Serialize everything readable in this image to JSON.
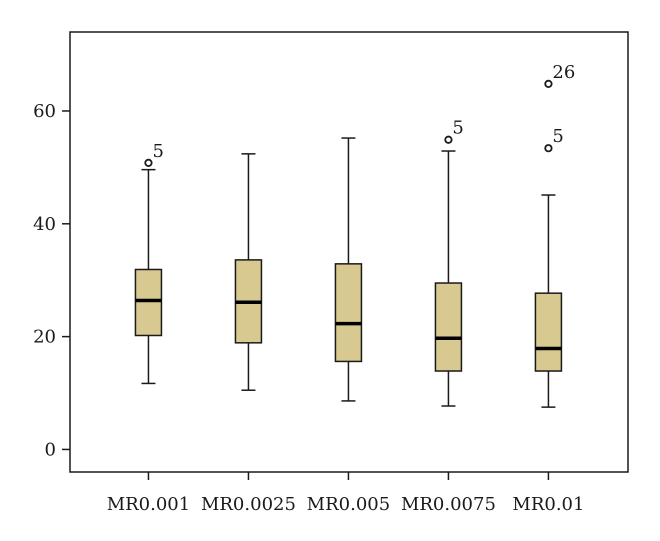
{
  "chart_data": {
    "type": "boxplot",
    "categories": [
      "MR0.001",
      "MR0.0025",
      "MR0.005",
      "MR0.0075",
      "MR0.01"
    ],
    "ylim": [
      -4,
      74
    ],
    "y_ticks": [
      0,
      20,
      40,
      60
    ],
    "grid": false,
    "box_color": "#d7c98f",
    "line_color": "#1a1a1a",
    "boxes": [
      {
        "label": "MR0.001",
        "min": 11.7,
        "q1": 20.2,
        "median": 26.4,
        "q3": 31.9,
        "max": 49.6,
        "outliers": [
          {
            "value": 50.8,
            "label": "5"
          }
        ]
      },
      {
        "label": "MR0.0025",
        "min": 10.5,
        "q1": 18.9,
        "median": 26.1,
        "q3": 33.6,
        "max": 52.4,
        "outliers": []
      },
      {
        "label": "MR0.005",
        "min": 8.6,
        "q1": 15.6,
        "median": 22.3,
        "q3": 32.9,
        "max": 55.2,
        "outliers": []
      },
      {
        "label": "MR0.0075",
        "min": 7.7,
        "q1": 13.9,
        "median": 19.7,
        "q3": 29.5,
        "max": 52.9,
        "outliers": [
          {
            "value": 54.9,
            "label": "5"
          }
        ]
      },
      {
        "label": "MR0.01",
        "min": 7.5,
        "q1": 13.9,
        "median": 17.9,
        "q3": 27.7,
        "max": 45.1,
        "outliers": [
          {
            "value": 53.4,
            "label": "5"
          },
          {
            "value": 64.8,
            "label": "26"
          }
        ]
      }
    ]
  }
}
